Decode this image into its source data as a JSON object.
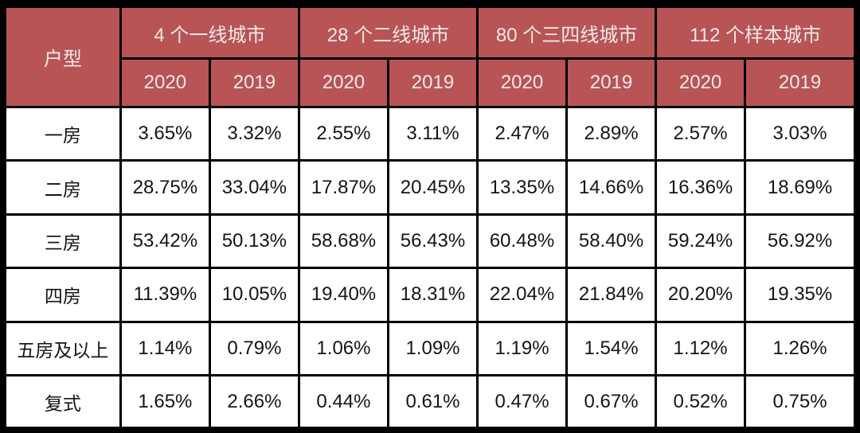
{
  "chart_data": {
    "type": "table",
    "corner_header": "户型",
    "column_groups": [
      {
        "label": "4 个一线城市",
        "years": [
          "2020",
          "2019"
        ]
      },
      {
        "label": "28 个二线城市",
        "years": [
          "2020",
          "2019"
        ]
      },
      {
        "label": "80 个三四线城市",
        "years": [
          "2020",
          "2019"
        ]
      },
      {
        "label": "112 个样本城市",
        "years": [
          "2020",
          "2019"
        ]
      }
    ],
    "rows": [
      {
        "label": "一房",
        "values": [
          "3.65%",
          "3.32%",
          "2.55%",
          "3.11%",
          "2.47%",
          "2.89%",
          "2.57%",
          "3.03%"
        ]
      },
      {
        "label": "二房",
        "values": [
          "28.75%",
          "33.04%",
          "17.87%",
          "20.45%",
          "13.35%",
          "14.66%",
          "16.36%",
          "18.69%"
        ]
      },
      {
        "label": "三房",
        "values": [
          "53.42%",
          "50.13%",
          "58.68%",
          "56.43%",
          "60.48%",
          "58.40%",
          "59.24%",
          "56.92%"
        ]
      },
      {
        "label": "四房",
        "values": [
          "11.39%",
          "10.05%",
          "19.40%",
          "18.31%",
          "22.04%",
          "21.84%",
          "20.20%",
          "19.35%"
        ]
      },
      {
        "label": "五房及以上",
        "values": [
          "1.14%",
          "0.79%",
          "1.06%",
          "1.09%",
          "1.19%",
          "1.54%",
          "1.12%",
          "1.26%"
        ]
      },
      {
        "label": "复式",
        "values": [
          "1.65%",
          "2.66%",
          "0.44%",
          "0.61%",
          "0.47%",
          "0.67%",
          "0.52%",
          "0.75%"
        ]
      }
    ]
  },
  "colors": {
    "header_bg": "#b85456",
    "header_text": "#f3e9e9",
    "cell_bg": "#ffffff",
    "cell_text": "#151515",
    "border": "#000000"
  }
}
